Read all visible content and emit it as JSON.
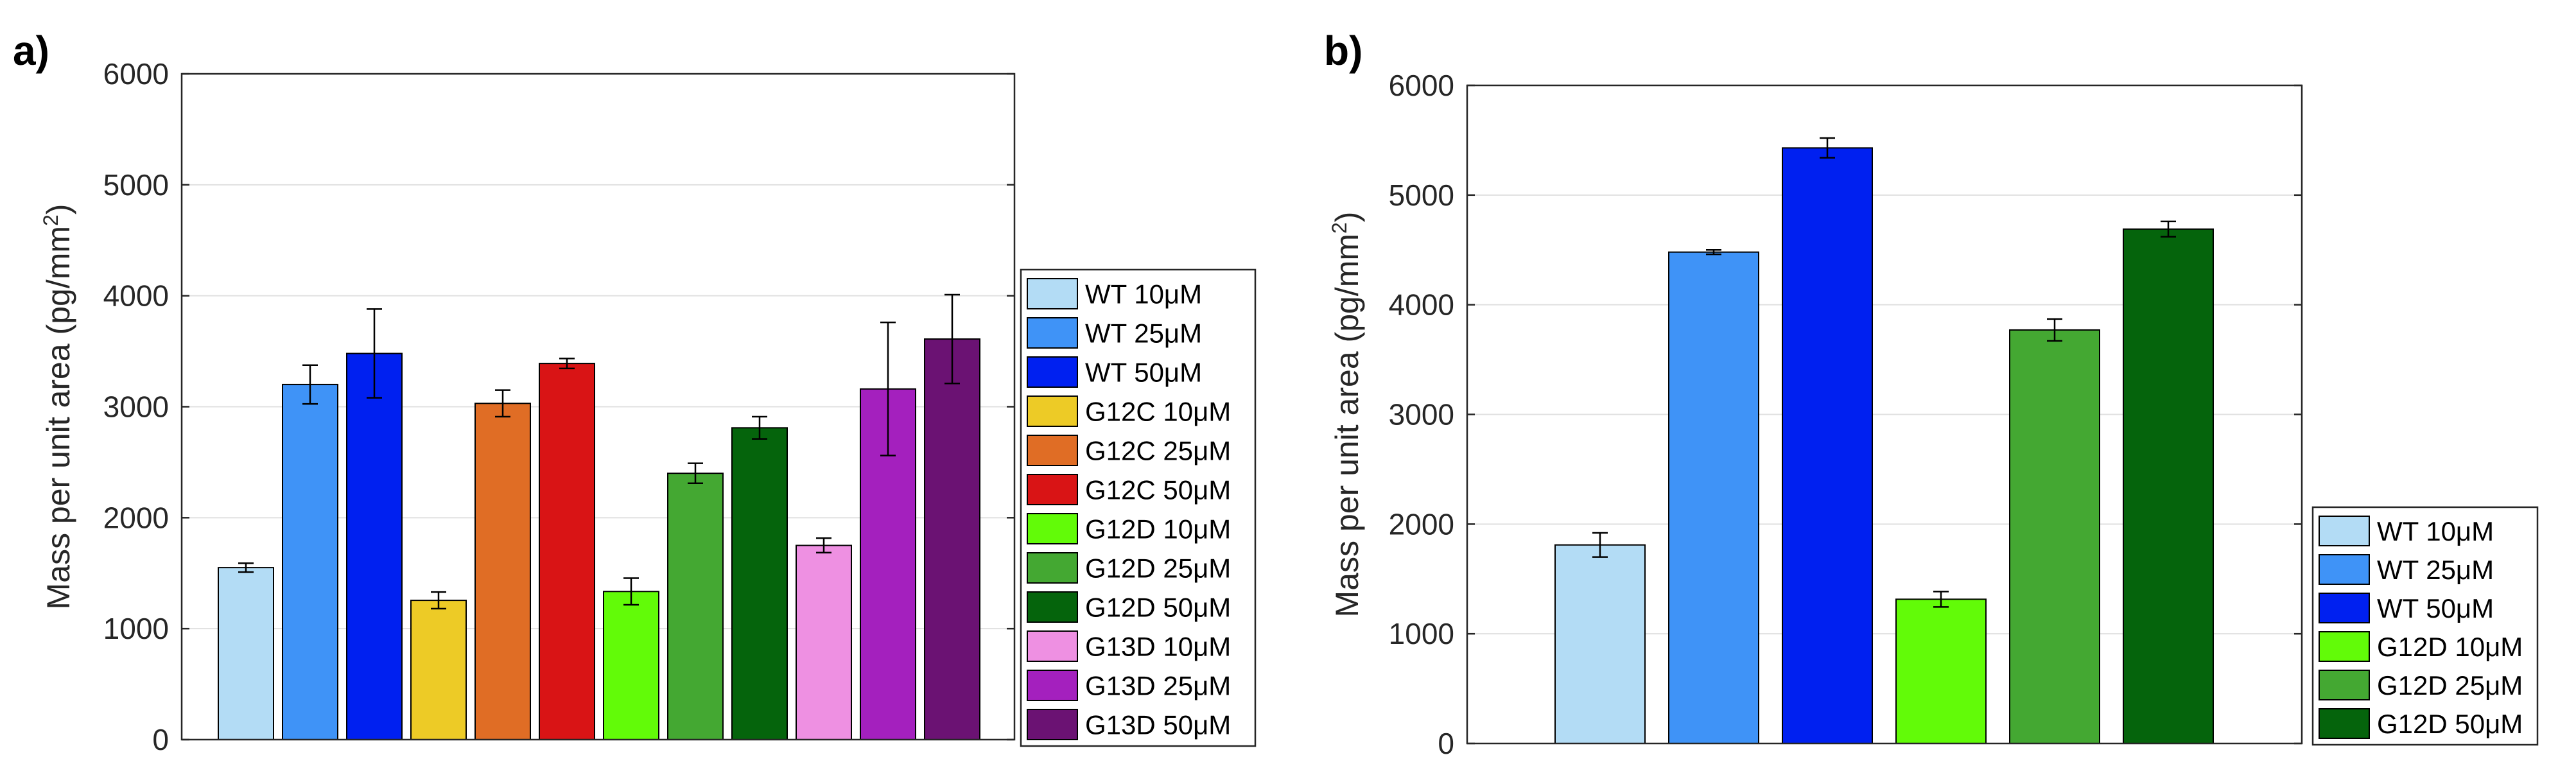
{
  "panels": [
    {
      "label": "a)"
    },
    {
      "label": "b)"
    }
  ],
  "chart_data": [
    {
      "type": "bar",
      "ylabel": "Mass per unit area (pg/mm²)",
      "xlabel": "",
      "ylim": [
        0,
        6000
      ],
      "yticks": [
        0,
        1000,
        2000,
        3000,
        4000,
        5000,
        6000
      ],
      "grid": "horizontal",
      "legend_position": "right",
      "series": [
        {
          "name": "WT 10μM",
          "value": 1550,
          "error": 40,
          "color": "#b3dcf5"
        },
        {
          "name": "WT 25μM",
          "value": 3200,
          "error": 175,
          "color": "#3f93f7"
        },
        {
          "name": "WT 50μM",
          "value": 3480,
          "error": 400,
          "color": "#0020f0"
        },
        {
          "name": "G12C 10μM",
          "value": 1255,
          "error": 75,
          "color": "#edcb26"
        },
        {
          "name": "G12C 25μM",
          "value": 3030,
          "error": 120,
          "color": "#e06d25"
        },
        {
          "name": "G12C 50μM",
          "value": 3390,
          "error": 45,
          "color": "#d91415"
        },
        {
          "name": "G12D 10μM",
          "value": 1335,
          "error": 120,
          "color": "#62fb08"
        },
        {
          "name": "G12D 25μM",
          "value": 2400,
          "error": 90,
          "color": "#44a832"
        },
        {
          "name": "G12D 50μM",
          "value": 2810,
          "error": 100,
          "color": "#05640c"
        },
        {
          "name": "G13D 10μM",
          "value": 1750,
          "error": 65,
          "color": "#ee90e2"
        },
        {
          "name": "G13D 25μM",
          "value": 3160,
          "error": 600,
          "color": "#a420be"
        },
        {
          "name": "G13D 50μM",
          "value": 3610,
          "error": 400,
          "color": "#6b1273"
        }
      ]
    },
    {
      "type": "bar",
      "ylabel": "Mass per unit area (pg/mm²)",
      "xlabel": "",
      "ylim": [
        0,
        6000
      ],
      "yticks": [
        0,
        1000,
        2000,
        3000,
        4000,
        5000,
        6000
      ],
      "grid": "horizontal",
      "legend_position": "bottom-right outside",
      "series": [
        {
          "name": "WT 10μM",
          "value": 1810,
          "error": 110,
          "color": "#b3dcf5"
        },
        {
          "name": "WT 25μM",
          "value": 4480,
          "error": 20,
          "color": "#3f93f7"
        },
        {
          "name": "WT 50μM",
          "value": 5430,
          "error": 90,
          "color": "#0020f0"
        },
        {
          "name": "G12D 10μM",
          "value": 1315,
          "error": 70,
          "color": "#62fb08"
        },
        {
          "name": "G12D 25μM",
          "value": 3770,
          "error": 100,
          "color": "#44a832"
        },
        {
          "name": "G12D 50μM",
          "value": 4690,
          "error": 70,
          "color": "#05640c"
        }
      ]
    }
  ]
}
